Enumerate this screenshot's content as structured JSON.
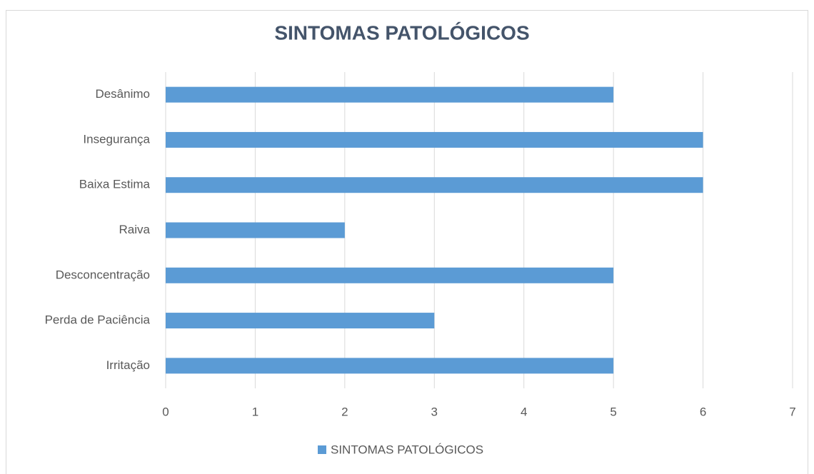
{
  "chart_data": {
    "type": "hbar",
    "title": "SINTOMAS PATOLÓGICOS",
    "categories": [
      "Desânimo",
      "Insegurança",
      "Baixa Estima",
      "Raiva",
      "Desconcentração",
      "Perda de Paciência",
      "Irritação"
    ],
    "series": [
      {
        "name": "SINTOMAS PATOLÓGICOS",
        "color": "#5b9bd5",
        "values": [
          5,
          6,
          6,
          2,
          5,
          3,
          5
        ]
      }
    ],
    "xlim": [
      0,
      7
    ],
    "xticks": [
      0,
      1,
      2,
      3,
      4,
      5,
      6,
      7
    ],
    "grid": true,
    "legend": "bottom"
  }
}
